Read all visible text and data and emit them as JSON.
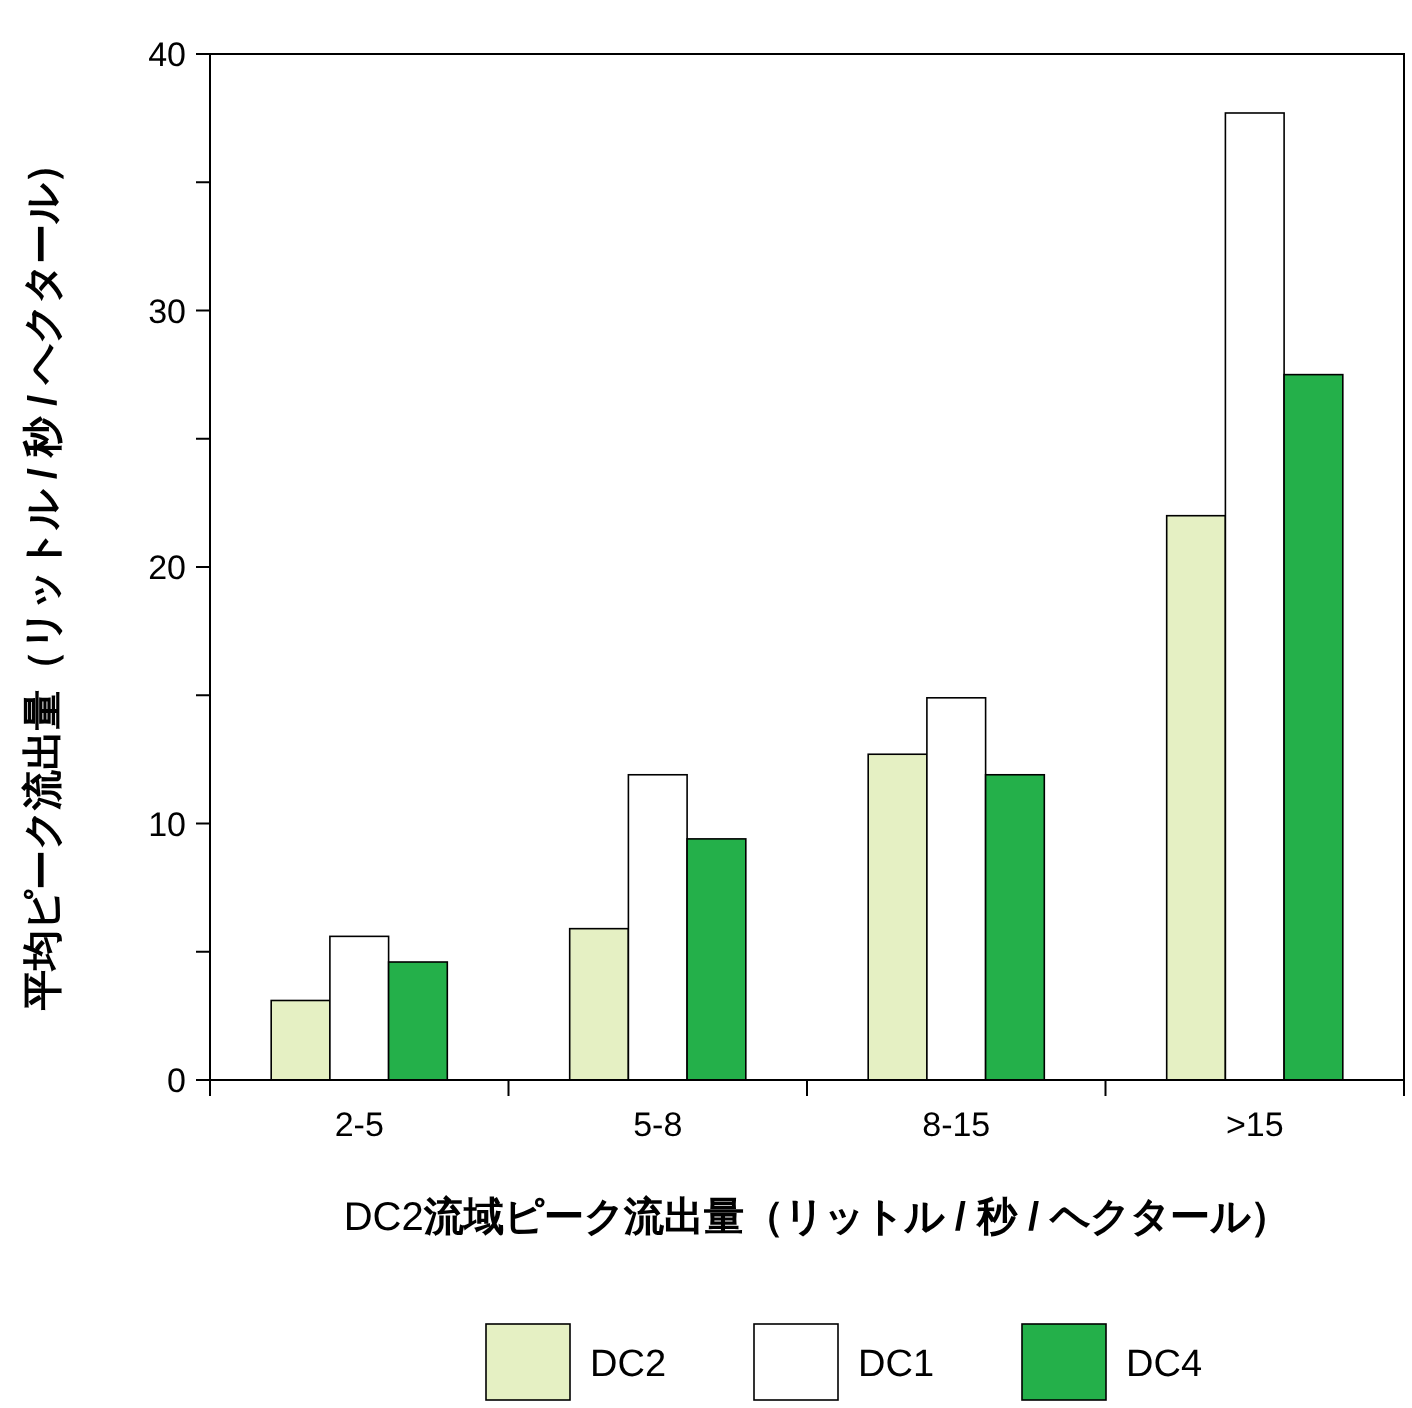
{
  "chart_data": {
    "type": "bar",
    "xlabel": "DC2流域ピーク流出量（リットル / 秒 / ヘクタール）",
    "ylabel": "平均ピーク流出量（リットル / 秒 / ヘクタール）",
    "categories": [
      "2-5",
      "5-8",
      "8-15",
      ">15"
    ],
    "series": [
      {
        "name": "DC2",
        "color": "#e5f0c3",
        "values": [
          3.1,
          5.9,
          12.7,
          22.0
        ]
      },
      {
        "name": "DC1",
        "color": "#ffffff",
        "values": [
          5.6,
          11.9,
          14.9,
          37.7
        ]
      },
      {
        "name": "DC4",
        "color": "#24b04a",
        "values": [
          4.6,
          9.4,
          11.9,
          27.5
        ]
      }
    ],
    "ylim": [
      0,
      40
    ],
    "yticks": [
      0,
      {
        "value": 5,
        "label": null
      },
      10,
      {
        "value": 15,
        "label": null
      },
      20,
      {
        "value": 25,
        "label": null
      },
      30,
      {
        "value": 35,
        "label": null
      },
      40
    ],
    "grid": false,
    "legend": "bottom"
  }
}
